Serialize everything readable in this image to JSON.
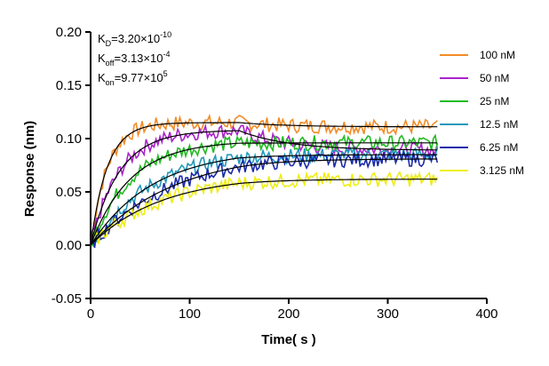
{
  "chart_data": {
    "type": "line",
    "xlabel": "Time( s )",
    "ylabel": "Response (nm)",
    "xlim": [
      0,
      400
    ],
    "ylim": [
      -0.05,
      0.2
    ],
    "x_ticks": [
      "0",
      "100",
      "200",
      "300",
      "400"
    ],
    "y_ticks": [
      "-0.05",
      "0.00",
      "0.05",
      "0.10",
      "0.15",
      "0.20"
    ],
    "grid": false,
    "legend_position": "right",
    "constants": {
      "kd": {
        "base": "K",
        "sub": "D",
        "value": "=3.20×10",
        "exp": "-10"
      },
      "koff": {
        "base": "K",
        "sub": "off",
        "value": "=3.13×10",
        "exp": "-4"
      },
      "kon": {
        "base": "K",
        "sub": "on",
        "value": "=9.77×10",
        "exp": "5"
      }
    },
    "series": [
      {
        "name": "100 nM",
        "color": "#f28c28",
        "assoc_plateau": 0.115,
        "k_on_rate": 0.06,
        "dissoc_end": 0.111
      },
      {
        "name": "50 nM",
        "color": "#aa22cc",
        "assoc_plateau": 0.108,
        "k_on_rate": 0.035,
        "dissoc_end": 0.089
      },
      {
        "name": "25 nM",
        "color": "#22bb22",
        "assoc_plateau": 0.098,
        "k_on_rate": 0.025,
        "dissoc_end": 0.096
      },
      {
        "name": "12.5 nM",
        "color": "#2299bb",
        "assoc_plateau": 0.09,
        "k_on_rate": 0.016,
        "dissoc_end": 0.085
      },
      {
        "name": "6.25 nM",
        "color": "#1a2aaa",
        "assoc_plateau": 0.088,
        "k_on_rate": 0.012,
        "dissoc_end": 0.081
      },
      {
        "name": "3.125 nM",
        "color": "#eeee11",
        "assoc_plateau": 0.066,
        "k_on_rate": 0.014,
        "dissoc_end": 0.062
      }
    ],
    "association_end_time": 150,
    "curve_end_time": 350,
    "fit_color": "#000000"
  }
}
